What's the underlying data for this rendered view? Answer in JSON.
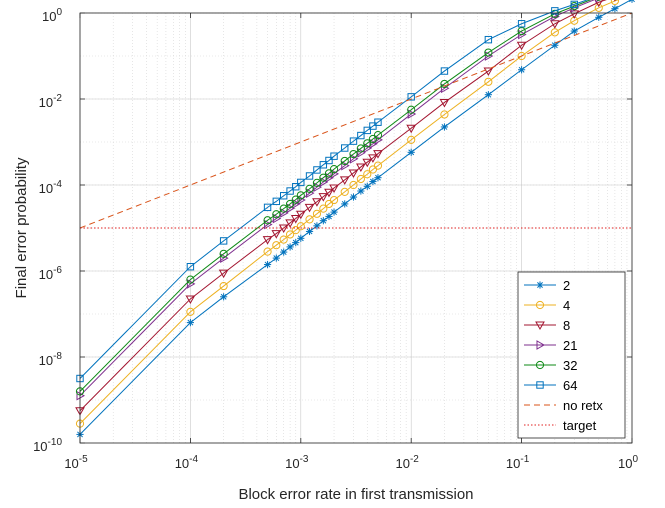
{
  "chart_data": {
    "type": "line",
    "title": "",
    "xlabel": "Block error rate in first transmission",
    "ylabel": "Final error probability",
    "xscale": "log",
    "yscale": "log",
    "xlim": [
      1e-05,
      1
    ],
    "ylim": [
      1e-10,
      1
    ],
    "grid": true,
    "minor_grid": true,
    "legend_position": "bottom-right",
    "x_ticks": [
      {
        "base": "10",
        "exp": "-5"
      },
      {
        "base": "10",
        "exp": "-4"
      },
      {
        "base": "10",
        "exp": "-3"
      },
      {
        "base": "10",
        "exp": "-2"
      },
      {
        "base": "10",
        "exp": "-1"
      },
      {
        "base": "10",
        "exp": "0"
      }
    ],
    "y_ticks": [
      {
        "base": "10",
        "exp": "-10"
      },
      {
        "base": "10",
        "exp": "-8"
      },
      {
        "base": "10",
        "exp": "-6"
      },
      {
        "base": "10",
        "exp": "-4"
      },
      {
        "base": "10",
        "exp": "-2"
      },
      {
        "base": "10",
        "exp": "0"
      }
    ],
    "x": [
      1e-05,
      0.0001,
      0.0002,
      0.0005,
      0.0006,
      0.0007,
      0.0008,
      0.0009,
      0.001,
      0.0012,
      0.0014,
      0.0016,
      0.0018,
      0.002,
      0.0025,
      0.003,
      0.0035,
      0.004,
      0.0045,
      0.005,
      0.01,
      0.02,
      0.05,
      0.1,
      0.2,
      0.3,
      0.5,
      0.7,
      1.0
    ],
    "series": [
      {
        "name": "2",
        "color": "#0072bd",
        "marker": "asterisk",
        "line": "solid",
        "y_log10": [
          -9.8,
          -7.2,
          -6.6,
          -5.85,
          -5.7,
          -5.56,
          -5.44,
          -5.34,
          -5.24,
          -5.08,
          -4.95,
          -4.83,
          -4.73,
          -4.63,
          -4.44,
          -4.28,
          -4.14,
          -4.03,
          -3.92,
          -3.83,
          -3.24,
          -2.65,
          -1.9,
          -1.32,
          -0.75,
          -0.42,
          -0.1,
          0.1,
          0.32
        ]
      },
      {
        "name": "4",
        "color": "#edb120",
        "marker": "circle",
        "line": "solid",
        "y_log10": [
          -9.55,
          -6.95,
          -6.35,
          -5.55,
          -5.4,
          -5.27,
          -5.15,
          -5.05,
          -4.96,
          -4.8,
          -4.67,
          -4.55,
          -4.44,
          -4.35,
          -4.16,
          -4.0,
          -3.86,
          -3.75,
          -3.64,
          -3.55,
          -2.95,
          -2.36,
          -1.6,
          -1.0,
          -0.45,
          -0.18,
          0.12,
          0.28,
          0.42
        ]
      },
      {
        "name": "8",
        "color": "#a2142f",
        "marker": "triangle-down",
        "line": "solid",
        "y_log10": [
          -9.25,
          -6.65,
          -6.05,
          -5.27,
          -5.13,
          -5.0,
          -4.88,
          -4.78,
          -4.68,
          -4.52,
          -4.39,
          -4.27,
          -4.17,
          -4.07,
          -3.88,
          -3.72,
          -3.58,
          -3.47,
          -3.37,
          -3.27,
          -2.68,
          -2.08,
          -1.35,
          -0.75,
          -0.25,
          -0.02,
          0.25,
          0.38,
          0.5
        ]
      },
      {
        "name": "21",
        "color": "#7e2f8e",
        "marker": "triangle-right",
        "line": "solid",
        "y_log10": [
          -8.9,
          -6.3,
          -5.7,
          -4.92,
          -4.78,
          -4.65,
          -4.54,
          -4.44,
          -4.35,
          -4.19,
          -4.05,
          -3.93,
          -3.83,
          -3.74,
          -3.55,
          -3.39,
          -3.25,
          -3.14,
          -3.04,
          -2.95,
          -2.35,
          -1.75,
          -1.0,
          -0.5,
          -0.08,
          0.12,
          0.35,
          0.45,
          0.54
        ]
      },
      {
        "name": "32",
        "color": "#0e8a16",
        "marker": "circle",
        "line": "solid",
        "y_log10": [
          -8.8,
          -6.2,
          -5.6,
          -4.82,
          -4.68,
          -4.55,
          -4.44,
          -4.34,
          -4.24,
          -4.09,
          -3.95,
          -3.83,
          -3.73,
          -3.63,
          -3.44,
          -3.28,
          -3.15,
          -3.03,
          -2.93,
          -2.84,
          -2.25,
          -1.65,
          -0.92,
          -0.42,
          -0.02,
          0.16,
          0.38,
          0.47,
          0.56
        ]
      },
      {
        "name": "64",
        "color": "#0072bd",
        "marker": "square",
        "line": "solid",
        "y_log10": [
          -8.5,
          -5.9,
          -5.3,
          -4.52,
          -4.38,
          -4.25,
          -4.14,
          -4.04,
          -3.94,
          -3.79,
          -3.65,
          -3.53,
          -3.43,
          -3.33,
          -3.14,
          -2.98,
          -2.85,
          -2.73,
          -2.63,
          -2.54,
          -1.95,
          -1.35,
          -0.62,
          -0.25,
          0.05,
          0.2,
          0.4,
          0.49,
          0.58
        ]
      },
      {
        "name": "no retx",
        "color": "#d95319",
        "marker": "none",
        "line": "dashed",
        "x": [
          1e-05,
          1
        ],
        "y_log10": [
          -5,
          0
        ]
      },
      {
        "name": "target",
        "color": "#e02020",
        "marker": "none",
        "line": "dotted",
        "x": [
          1e-05,
          1
        ],
        "y_log10": [
          -5,
          -5
        ]
      }
    ]
  }
}
